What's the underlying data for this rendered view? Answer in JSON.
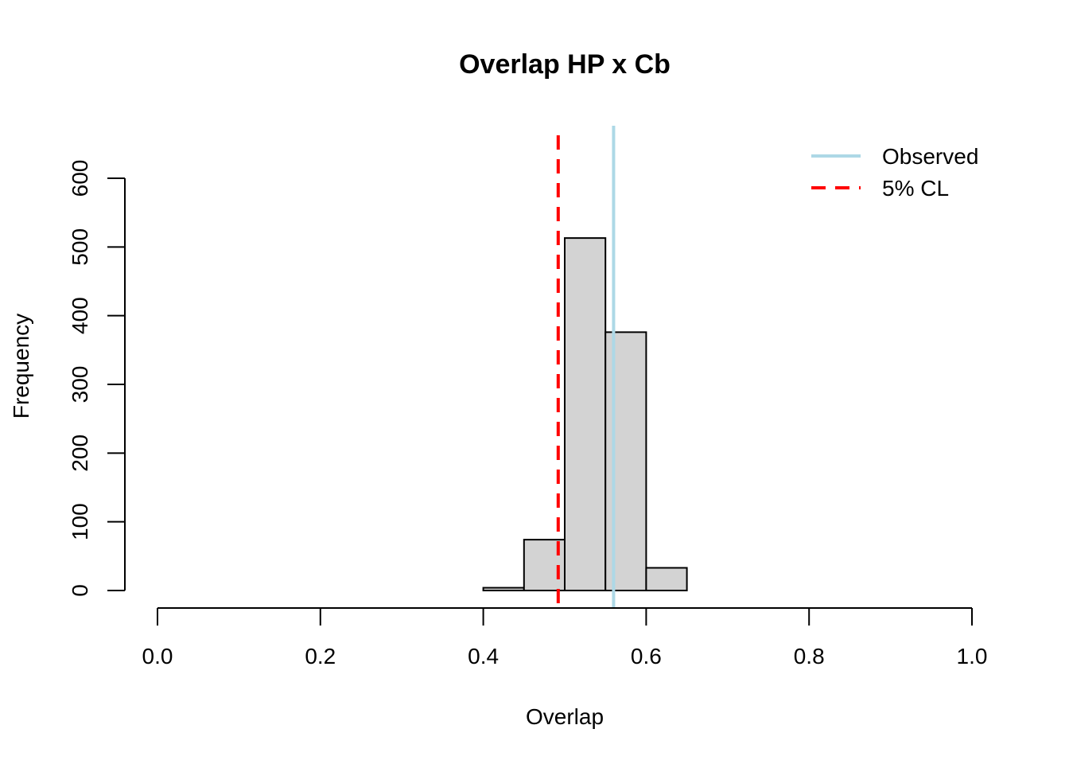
{
  "chart_data": {
    "type": "bar",
    "title": "Overlap HP x Cb",
    "xlabel": "Overlap",
    "ylabel": "Frequency",
    "xlim": [
      0.0,
      1.0
    ],
    "ylim": [
      0,
      600
    ],
    "x_ticks": [
      "0.0",
      "0.2",
      "0.4",
      "0.6",
      "0.8",
      "1.0"
    ],
    "y_ticks": [
      "0",
      "100",
      "200",
      "300",
      "400",
      "500",
      "600"
    ],
    "bins": [
      {
        "from": 0.4,
        "to": 0.45,
        "count": 4
      },
      {
        "from": 0.45,
        "to": 0.5,
        "count": 74
      },
      {
        "from": 0.5,
        "to": 0.55,
        "count": 513
      },
      {
        "from": 0.55,
        "to": 0.6,
        "count": 376
      },
      {
        "from": 0.6,
        "to": 0.65,
        "count": 33
      }
    ],
    "bar_fill": "#d3d3d3",
    "reference_lines": [
      {
        "name": "Observed",
        "x": 0.56,
        "color": "#add8e6",
        "style": "solid"
      },
      {
        "name": "5% CL",
        "x": 0.492,
        "color": "#ff0000",
        "style": "dashed"
      }
    ],
    "legend": {
      "position": "top-right",
      "entries": [
        {
          "label": "Observed",
          "color": "#add8e6",
          "style": "solid"
        },
        {
          "label": "5% CL",
          "color": "#ff0000",
          "style": "dashed"
        }
      ]
    },
    "grid": false
  }
}
